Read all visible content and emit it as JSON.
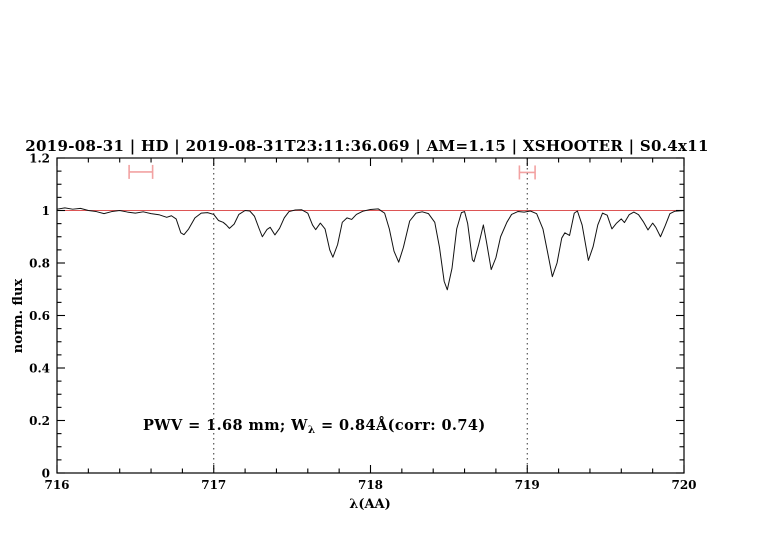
{
  "header": {
    "title": "2019-08-31 | HD | 2019-08-31T23:11:36.069 | AM=1.15 | XSHOOTER | S0.4x11",
    "title_color": "#0000cd"
  },
  "annotation": {
    "pre": "PWV = 1.68 mm; W",
    "sub": "λ",
    "post": " = 0.84Å(corr: 0.74)",
    "color": "#0000cd"
  },
  "chart_data": {
    "type": "line",
    "title": "2019-08-31 | HD | 2019-08-31T23:11:36.069 | AM=1.15 | XSHOOTER | S0.4x11",
    "xlabel": "λ(AA)",
    "ylabel": "norm. flux",
    "xlim": [
      716,
      720
    ],
    "ylim": [
      0,
      1.2
    ],
    "x_major_ticks": [
      716,
      717,
      718,
      719,
      720
    ],
    "x_tick_labels": [
      "716",
      "717",
      "718",
      "719",
      "720"
    ],
    "x_minor_step": 0.2,
    "y_major_ticks": [
      0,
      0.2,
      0.4,
      0.6,
      0.8,
      1,
      1.2
    ],
    "y_tick_labels": [
      "0",
      "0.2",
      "0.4",
      "0.6",
      "0.8",
      "1",
      "1.2"
    ],
    "y_minor_step": 0.05,
    "grid": false,
    "legend": "none",
    "dotted_vlines_x": [
      717,
      719
    ],
    "continuum_line": {
      "y": 1.0,
      "color": "#dd5555"
    },
    "range_markers": [
      {
        "x1": 716.46,
        "x2": 716.61,
        "y": 1.147
      },
      {
        "x1": 718.95,
        "x2": 719.05,
        "y": 1.145
      }
    ],
    "marker_color": "#f2a2a2",
    "dotted_line_color": "#333333",
    "axis_color": "#000000",
    "series": [
      {
        "name": "spectrum",
        "color": "#111111",
        "points": [
          [
            716.0,
            1.005
          ],
          [
            716.05,
            1.01
          ],
          [
            716.1,
            1.005
          ],
          [
            716.15,
            1.008
          ],
          [
            716.2,
            1.0
          ],
          [
            716.25,
            0.996
          ],
          [
            716.3,
            0.988
          ],
          [
            716.35,
            0.996
          ],
          [
            716.4,
            1.0
          ],
          [
            716.45,
            0.994
          ],
          [
            716.5,
            0.99
          ],
          [
            716.55,
            0.995
          ],
          [
            716.6,
            0.988
          ],
          [
            716.65,
            0.984
          ],
          [
            716.7,
            0.974
          ],
          [
            716.73,
            0.98
          ],
          [
            716.76,
            0.968
          ],
          [
            716.79,
            0.915
          ],
          [
            716.81,
            0.908
          ],
          [
            716.84,
            0.93
          ],
          [
            716.88,
            0.972
          ],
          [
            716.92,
            0.99
          ],
          [
            716.96,
            0.992
          ],
          [
            717.0,
            0.985
          ],
          [
            717.03,
            0.962
          ],
          [
            717.06,
            0.955
          ],
          [
            717.08,
            0.945
          ],
          [
            717.1,
            0.932
          ],
          [
            717.13,
            0.948
          ],
          [
            717.16,
            0.985
          ],
          [
            717.2,
            1.0
          ],
          [
            717.23,
            0.998
          ],
          [
            717.26,
            0.978
          ],
          [
            717.29,
            0.93
          ],
          [
            717.31,
            0.9
          ],
          [
            717.34,
            0.928
          ],
          [
            717.36,
            0.936
          ],
          [
            717.39,
            0.907
          ],
          [
            717.42,
            0.932
          ],
          [
            717.45,
            0.972
          ],
          [
            717.48,
            0.996
          ],
          [
            717.52,
            1.002
          ],
          [
            717.56,
            1.003
          ],
          [
            717.6,
            0.99
          ],
          [
            717.63,
            0.945
          ],
          [
            717.65,
            0.927
          ],
          [
            717.68,
            0.952
          ],
          [
            717.71,
            0.93
          ],
          [
            717.74,
            0.85
          ],
          [
            717.76,
            0.822
          ],
          [
            717.79,
            0.87
          ],
          [
            717.82,
            0.955
          ],
          [
            717.85,
            0.972
          ],
          [
            717.88,
            0.966
          ],
          [
            717.91,
            0.985
          ],
          [
            717.95,
            0.997
          ],
          [
            718.0,
            1.004
          ],
          [
            718.05,
            1.006
          ],
          [
            718.09,
            0.99
          ],
          [
            718.12,
            0.93
          ],
          [
            718.15,
            0.845
          ],
          [
            718.18,
            0.803
          ],
          [
            718.21,
            0.86
          ],
          [
            718.25,
            0.96
          ],
          [
            718.29,
            0.99
          ],
          [
            718.33,
            0.995
          ],
          [
            718.37,
            0.988
          ],
          [
            718.41,
            0.955
          ],
          [
            718.44,
            0.86
          ],
          [
            718.47,
            0.73
          ],
          [
            718.49,
            0.698
          ],
          [
            718.52,
            0.78
          ],
          [
            718.55,
            0.93
          ],
          [
            718.58,
            0.992
          ],
          [
            718.6,
            0.996
          ],
          [
            718.62,
            0.95
          ],
          [
            718.65,
            0.812
          ],
          [
            718.66,
            0.805
          ],
          [
            718.69,
            0.87
          ],
          [
            718.72,
            0.945
          ],
          [
            718.74,
            0.88
          ],
          [
            718.77,
            0.775
          ],
          [
            718.8,
            0.82
          ],
          [
            718.83,
            0.9
          ],
          [
            718.87,
            0.955
          ],
          [
            718.9,
            0.985
          ],
          [
            718.94,
            0.996
          ],
          [
            718.98,
            0.994
          ],
          [
            719.02,
            0.998
          ],
          [
            719.06,
            0.988
          ],
          [
            719.1,
            0.93
          ],
          [
            719.13,
            0.84
          ],
          [
            719.16,
            0.748
          ],
          [
            719.19,
            0.8
          ],
          [
            719.22,
            0.895
          ],
          [
            719.24,
            0.915
          ],
          [
            719.27,
            0.905
          ],
          [
            719.3,
            0.99
          ],
          [
            719.32,
            0.998
          ],
          [
            719.35,
            0.945
          ],
          [
            719.39,
            0.81
          ],
          [
            719.42,
            0.862
          ],
          [
            719.45,
            0.945
          ],
          [
            719.48,
            0.99
          ],
          [
            719.51,
            0.982
          ],
          [
            719.54,
            0.93
          ],
          [
            719.57,
            0.952
          ],
          [
            719.6,
            0.968
          ],
          [
            719.62,
            0.954
          ],
          [
            719.65,
            0.984
          ],
          [
            719.68,
            0.994
          ],
          [
            719.71,
            0.984
          ],
          [
            719.74,
            0.958
          ],
          [
            719.77,
            0.926
          ],
          [
            719.8,
            0.952
          ],
          [
            719.82,
            0.936
          ],
          [
            719.85,
            0.9
          ],
          [
            719.88,
            0.942
          ],
          [
            719.91,
            0.988
          ],
          [
            719.94,
            0.997
          ],
          [
            720.0,
            1.0
          ]
        ]
      }
    ]
  }
}
